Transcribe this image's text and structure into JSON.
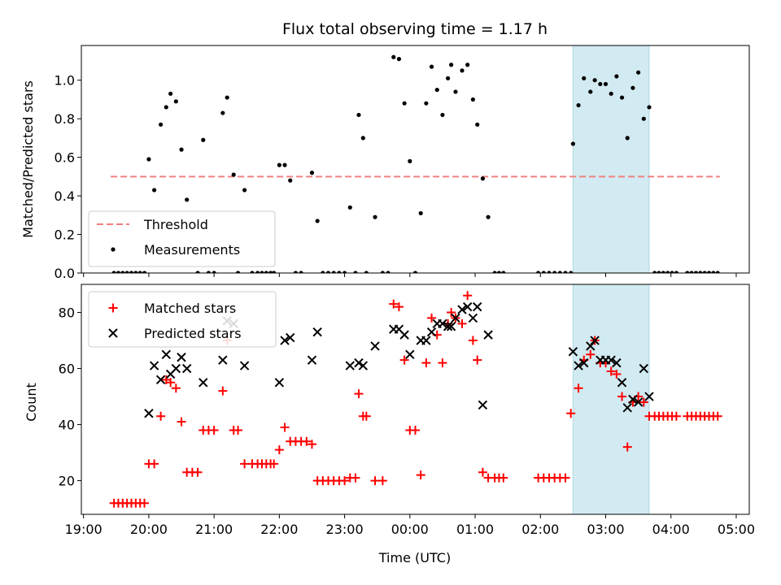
{
  "chart_data": {
    "type": "scatter",
    "title": "Flux total observing time = 1.17 h",
    "xlabel": "Time (UTC)",
    "x_range": [
      "18:58",
      "05:12"
    ],
    "x_ticks": [
      "19:00",
      "20:00",
      "21:00",
      "22:00",
      "23:00",
      "00:00",
      "01:00",
      "02:00",
      "03:00",
      "04:00",
      "05:00"
    ],
    "highlight_span": [
      "02:30",
      "03:40"
    ],
    "highlight_color": "#add8e6",
    "top": {
      "ylabel": "Matched/Predicted stars",
      "ylim": [
        0,
        1.18
      ],
      "y_ticks": [
        "0.0",
        "0.2",
        "0.4",
        "0.6",
        "0.8",
        "1.0"
      ],
      "legend_position": "lower-left",
      "threshold": {
        "name": "Threshold",
        "value": 0.5,
        "x_start": "19:25",
        "x_end": "04:45",
        "color": "#f08080"
      },
      "measurements": {
        "name": "Measurements",
        "color": "#000000",
        "points": [
          [
            "19:28",
            0
          ],
          [
            "19:32",
            0
          ],
          [
            "19:36",
            0
          ],
          [
            "19:40",
            0
          ],
          [
            "19:44",
            0
          ],
          [
            "19:48",
            0
          ],
          [
            "19:52",
            0
          ],
          [
            "19:56",
            0
          ],
          [
            "20:00",
            0.59
          ],
          [
            "20:05",
            0.43
          ],
          [
            "20:11",
            0.77
          ],
          [
            "20:16",
            0.86
          ],
          [
            "20:20",
            0.93
          ],
          [
            "20:25",
            0.89
          ],
          [
            "20:30",
            0.64
          ],
          [
            "20:35",
            0.38
          ],
          [
            "20:45",
            0
          ],
          [
            "20:50",
            0.69
          ],
          [
            "20:55",
            0
          ],
          [
            "21:00",
            0
          ],
          [
            "21:08",
            0.83
          ],
          [
            "21:12",
            0.91
          ],
          [
            "21:18",
            0.51
          ],
          [
            "21:22",
            0
          ],
          [
            "21:28",
            0.43
          ],
          [
            "21:35",
            0
          ],
          [
            "21:40",
            0
          ],
          [
            "21:44",
            0
          ],
          [
            "21:48",
            0
          ],
          [
            "21:52",
            0
          ],
          [
            "21:55",
            0
          ],
          [
            "22:00",
            0.56
          ],
          [
            "22:05",
            0.56
          ],
          [
            "22:10",
            0.48
          ],
          [
            "22:15",
            0
          ],
          [
            "22:20",
            0
          ],
          [
            "22:30",
            0.52
          ],
          [
            "22:35",
            0.27
          ],
          [
            "22:40",
            0
          ],
          [
            "22:45",
            0
          ],
          [
            "22:50",
            0
          ],
          [
            "22:55",
            0
          ],
          [
            "23:00",
            0
          ],
          [
            "23:05",
            0.34
          ],
          [
            "23:10",
            0
          ],
          [
            "23:13",
            0.82
          ],
          [
            "23:17",
            0.7
          ],
          [
            "23:20",
            0
          ],
          [
            "23:28",
            0.29
          ],
          [
            "23:35",
            0
          ],
          [
            "23:40",
            0
          ],
          [
            "23:45",
            1.12
          ],
          [
            "23:50",
            1.11
          ],
          [
            "23:55",
            0.88
          ],
          [
            "00:00",
            0.58
          ],
          [
            "00:05",
            0
          ],
          [
            "00:10",
            0.31
          ],
          [
            "00:15",
            0.88
          ],
          [
            "00:20",
            1.07
          ],
          [
            "00:25",
            0.95
          ],
          [
            "00:30",
            0.82
          ],
          [
            "00:35",
            1.01
          ],
          [
            "00:38",
            1.08
          ],
          [
            "00:42",
            0.94
          ],
          [
            "00:48",
            1.05
          ],
          [
            "00:53",
            1.08
          ],
          [
            "00:58",
            0.9
          ],
          [
            "01:02",
            0.77
          ],
          [
            "01:07",
            0.49
          ],
          [
            "01:12",
            0.29
          ],
          [
            "01:18",
            0
          ],
          [
            "01:22",
            0
          ],
          [
            "01:26",
            0
          ],
          [
            "01:58",
            0
          ],
          [
            "02:03",
            0
          ],
          [
            "02:08",
            0
          ],
          [
            "02:13",
            0
          ],
          [
            "02:18",
            0
          ],
          [
            "02:23",
            0
          ],
          [
            "02:28",
            0
          ],
          [
            "02:30",
            0.67
          ],
          [
            "02:35",
            0.87
          ],
          [
            "02:40",
            1.01
          ],
          [
            "02:46",
            0.94
          ],
          [
            "02:50",
            1.0
          ],
          [
            "02:55",
            0.98
          ],
          [
            "03:00",
            0.98
          ],
          [
            "03:05",
            0.93
          ],
          [
            "03:10",
            1.02
          ],
          [
            "03:15",
            0.91
          ],
          [
            "03:20",
            0.7
          ],
          [
            "03:25",
            0.96
          ],
          [
            "03:30",
            1.04
          ],
          [
            "03:35",
            0.8
          ],
          [
            "03:40",
            0.86
          ],
          [
            "03:45",
            0
          ],
          [
            "03:49",
            0
          ],
          [
            "03:53",
            0
          ],
          [
            "03:57",
            0
          ],
          [
            "04:01",
            0
          ],
          [
            "04:05",
            0
          ],
          [
            "04:15",
            0
          ],
          [
            "04:19",
            0
          ],
          [
            "04:23",
            0
          ],
          [
            "04:27",
            0
          ],
          [
            "04:31",
            0
          ],
          [
            "04:35",
            0
          ],
          [
            "04:39",
            0
          ],
          [
            "04:43",
            0
          ]
        ]
      }
    },
    "bottom": {
      "ylabel": "Count",
      "ylim": [
        8,
        90
      ],
      "y_ticks": [
        "20",
        "40",
        "60",
        "80"
      ],
      "legend_position": "upper-left",
      "series": [
        {
          "name": "Matched stars",
          "marker": "+",
          "color": "#ff0000",
          "points": [
            [
              "19:28",
              12
            ],
            [
              "19:32",
              12
            ],
            [
              "19:36",
              12
            ],
            [
              "19:40",
              12
            ],
            [
              "19:44",
              12
            ],
            [
              "19:48",
              12
            ],
            [
              "19:52",
              12
            ],
            [
              "19:56",
              12
            ],
            [
              "20:00",
              26
            ],
            [
              "20:05",
              26
            ],
            [
              "20:11",
              43
            ],
            [
              "20:16",
              56
            ],
            [
              "20:20",
              55
            ],
            [
              "20:25",
              53
            ],
            [
              "20:30",
              41
            ],
            [
              "20:35",
              23
            ],
            [
              "20:40",
              23
            ],
            [
              "20:45",
              23
            ],
            [
              "20:50",
              38
            ],
            [
              "20:55",
              38
            ],
            [
              "21:00",
              38
            ],
            [
              "21:08",
              52
            ],
            [
              "21:12",
              70
            ],
            [
              "21:18",
              38
            ],
            [
              "21:22",
              38
            ],
            [
              "21:28",
              26
            ],
            [
              "21:35",
              26
            ],
            [
              "21:40",
              26
            ],
            [
              "21:44",
              26
            ],
            [
              "21:48",
              26
            ],
            [
              "21:52",
              26
            ],
            [
              "21:55",
              26
            ],
            [
              "22:00",
              31
            ],
            [
              "22:05",
              39
            ],
            [
              "22:10",
              34
            ],
            [
              "22:15",
              34
            ],
            [
              "22:20",
              34
            ],
            [
              "22:25",
              34
            ],
            [
              "22:30",
              33
            ],
            [
              "22:35",
              20
            ],
            [
              "22:40",
              20
            ],
            [
              "22:45",
              20
            ],
            [
              "22:50",
              20
            ],
            [
              "22:55",
              20
            ],
            [
              "23:00",
              20
            ],
            [
              "23:05",
              21
            ],
            [
              "23:10",
              21
            ],
            [
              "23:13",
              51
            ],
            [
              "23:17",
              43
            ],
            [
              "23:20",
              43
            ],
            [
              "23:28",
              20
            ],
            [
              "23:35",
              20
            ],
            [
              "23:45",
              83
            ],
            [
              "23:50",
              82
            ],
            [
              "23:55",
              63
            ],
            [
              "00:00",
              38
            ],
            [
              "00:05",
              38
            ],
            [
              "00:10",
              22
            ],
            [
              "00:15",
              62
            ],
            [
              "00:20",
              78
            ],
            [
              "00:25",
              72
            ],
            [
              "00:30",
              62
            ],
            [
              "00:35",
              76
            ],
            [
              "00:38",
              80
            ],
            [
              "00:42",
              78
            ],
            [
              "00:48",
              76
            ],
            [
              "00:53",
              86
            ],
            [
              "00:58",
              70
            ],
            [
              "01:02",
              63
            ],
            [
              "01:07",
              23
            ],
            [
              "01:12",
              21
            ],
            [
              "01:18",
              21
            ],
            [
              "01:22",
              21
            ],
            [
              "01:26",
              21
            ],
            [
              "01:58",
              21
            ],
            [
              "02:03",
              21
            ],
            [
              "02:08",
              21
            ],
            [
              "02:13",
              21
            ],
            [
              "02:18",
              21
            ],
            [
              "02:23",
              21
            ],
            [
              "02:28",
              44
            ],
            [
              "02:35",
              53
            ],
            [
              "02:40",
              63
            ],
            [
              "02:46",
              65
            ],
            [
              "02:50",
              70
            ],
            [
              "02:55",
              62
            ],
            [
              "03:00",
              62
            ],
            [
              "03:05",
              59
            ],
            [
              "03:10",
              58
            ],
            [
              "03:15",
              50
            ],
            [
              "03:20",
              32
            ],
            [
              "03:25",
              48
            ],
            [
              "03:30",
              50
            ],
            [
              "03:35",
              48
            ],
            [
              "03:40",
              43
            ],
            [
              "03:45",
              43
            ],
            [
              "03:49",
              43
            ],
            [
              "03:53",
              43
            ],
            [
              "03:57",
              43
            ],
            [
              "04:01",
              43
            ],
            [
              "04:05",
              43
            ],
            [
              "04:15",
              43
            ],
            [
              "04:19",
              43
            ],
            [
              "04:23",
              43
            ],
            [
              "04:27",
              43
            ],
            [
              "04:31",
              43
            ],
            [
              "04:35",
              43
            ],
            [
              "04:39",
              43
            ],
            [
              "04:43",
              43
            ]
          ]
        },
        {
          "name": "Predicted stars",
          "marker": "x",
          "color": "#000000",
          "points": [
            [
              "20:00",
              44
            ],
            [
              "20:05",
              61
            ],
            [
              "20:11",
              56
            ],
            [
              "20:16",
              65
            ],
            [
              "20:20",
              58
            ],
            [
              "20:25",
              60
            ],
            [
              "20:30",
              64
            ],
            [
              "20:35",
              60
            ],
            [
              "20:50",
              55
            ],
            [
              "21:08",
              63
            ],
            [
              "21:12",
              77
            ],
            [
              "21:18",
              76
            ],
            [
              "21:28",
              61
            ],
            [
              "22:00",
              55
            ],
            [
              "22:05",
              70
            ],
            [
              "22:10",
              71
            ],
            [
              "22:30",
              63
            ],
            [
              "22:35",
              73
            ],
            [
              "23:05",
              61
            ],
            [
              "23:13",
              62
            ],
            [
              "23:17",
              61
            ],
            [
              "23:28",
              68
            ],
            [
              "23:45",
              74
            ],
            [
              "23:50",
              74
            ],
            [
              "23:55",
              72
            ],
            [
              "00:00",
              65
            ],
            [
              "00:10",
              70
            ],
            [
              "00:15",
              70
            ],
            [
              "00:20",
              73
            ],
            [
              "00:25",
              76
            ],
            [
              "00:30",
              76
            ],
            [
              "00:35",
              75
            ],
            [
              "00:38",
              75
            ],
            [
              "00:42",
              78
            ],
            [
              "00:48",
              81
            ],
            [
              "00:53",
              82
            ],
            [
              "00:58",
              78
            ],
            [
              "01:02",
              82
            ],
            [
              "01:07",
              47
            ],
            [
              "01:12",
              72
            ],
            [
              "02:30",
              66
            ],
            [
              "02:35",
              61
            ],
            [
              "02:40",
              62
            ],
            [
              "02:46",
              68
            ],
            [
              "02:50",
              70
            ],
            [
              "02:55",
              63
            ],
            [
              "03:00",
              63
            ],
            [
              "03:05",
              63
            ],
            [
              "03:10",
              62
            ],
            [
              "03:15",
              55
            ],
            [
              "03:20",
              46
            ],
            [
              "03:25",
              49
            ],
            [
              "03:30",
              48
            ],
            [
              "03:35",
              60
            ],
            [
              "03:40",
              50
            ]
          ]
        }
      ]
    }
  }
}
